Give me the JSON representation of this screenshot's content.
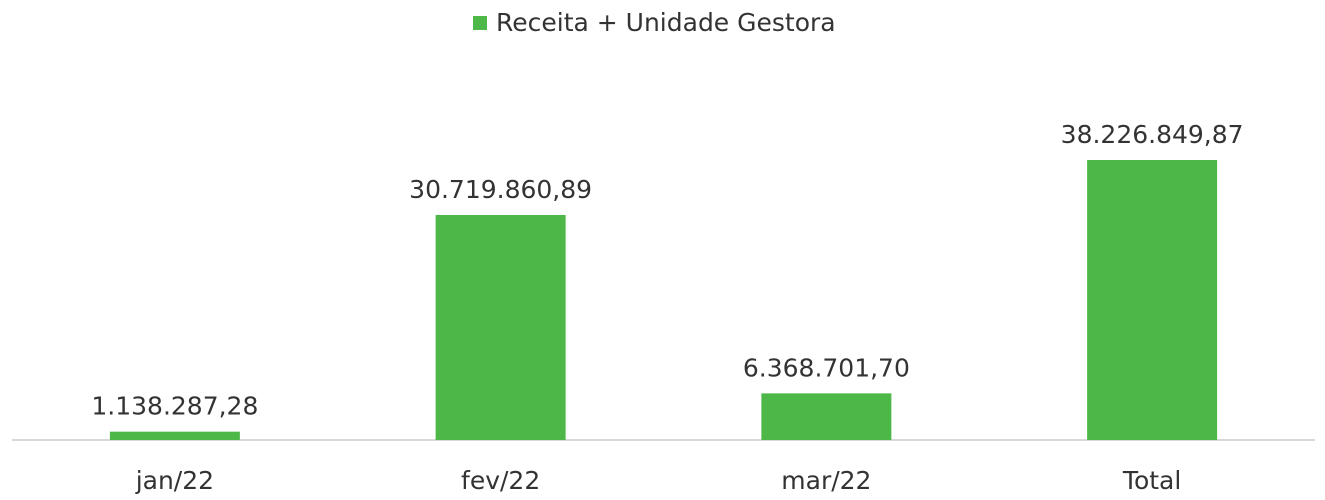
{
  "chart_data": {
    "type": "bar",
    "categories": [
      "jan/22",
      "fev/22",
      "mar/22",
      "Total"
    ],
    "series": [
      {
        "name": "Receita + Unidade Gestora",
        "color": "#4db848",
        "values": [
          1138287.28,
          30719860.89,
          6368701.7,
          38226849.87
        ],
        "value_labels": [
          "1.138.287,28",
          "30.719.860,89",
          "6.368.701,70",
          "38.226.849,87"
        ]
      }
    ],
    "legend": "top"
  }
}
